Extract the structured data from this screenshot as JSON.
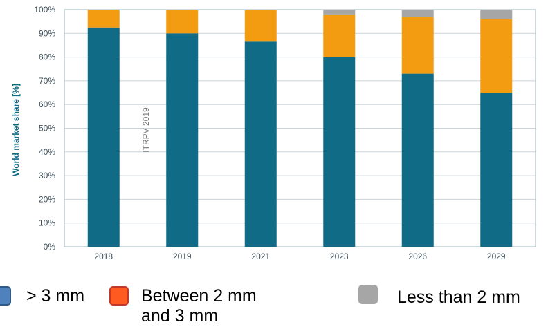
{
  "chart_data": {
    "type": "bar",
    "stacked": true,
    "categories": [
      "2018",
      "2019",
      "2021",
      "2023",
      "2026",
      "2029"
    ],
    "series": [
      {
        "name": "> 3 mm",
        "values": [
          92.5,
          90,
          86.5,
          80,
          73,
          65
        ],
        "color": "#0f6b86"
      },
      {
        "name": "Between 2 mm and 3 mm",
        "values": [
          7.5,
          10,
          13.5,
          18,
          24,
          31
        ],
        "color": "#f39c12"
      },
      {
        "name": "Less than 2 mm",
        "values": [
          0,
          0,
          0,
          2,
          3,
          4
        ],
        "color": "#a6a6a6"
      }
    ],
    "ylabel": "World market share [%]",
    "ylim": [
      0,
      100
    ],
    "yticks": [
      "0%",
      "10%",
      "20%",
      "30%",
      "40%",
      "50%",
      "60%",
      "70%",
      "80%",
      "90%",
      "100%"
    ],
    "grid": true,
    "watermark": "ITRPV 2019",
    "legend_position": "bottom"
  },
  "legend": {
    "item1": {
      "label": "> 3 mm",
      "swatch_fill": "#4f81bd",
      "swatch_border": "#2e5b8a"
    },
    "item2": {
      "label_line1": "Between 2 mm",
      "label_line2": "and 3 mm",
      "swatch_fill": "#ff5a1f",
      "swatch_border": "#c0392b"
    },
    "item3": {
      "label": "Less than 2 mm",
      "swatch_fill": "#a6a6a6",
      "swatch_border": "#a6a6a6"
    }
  }
}
